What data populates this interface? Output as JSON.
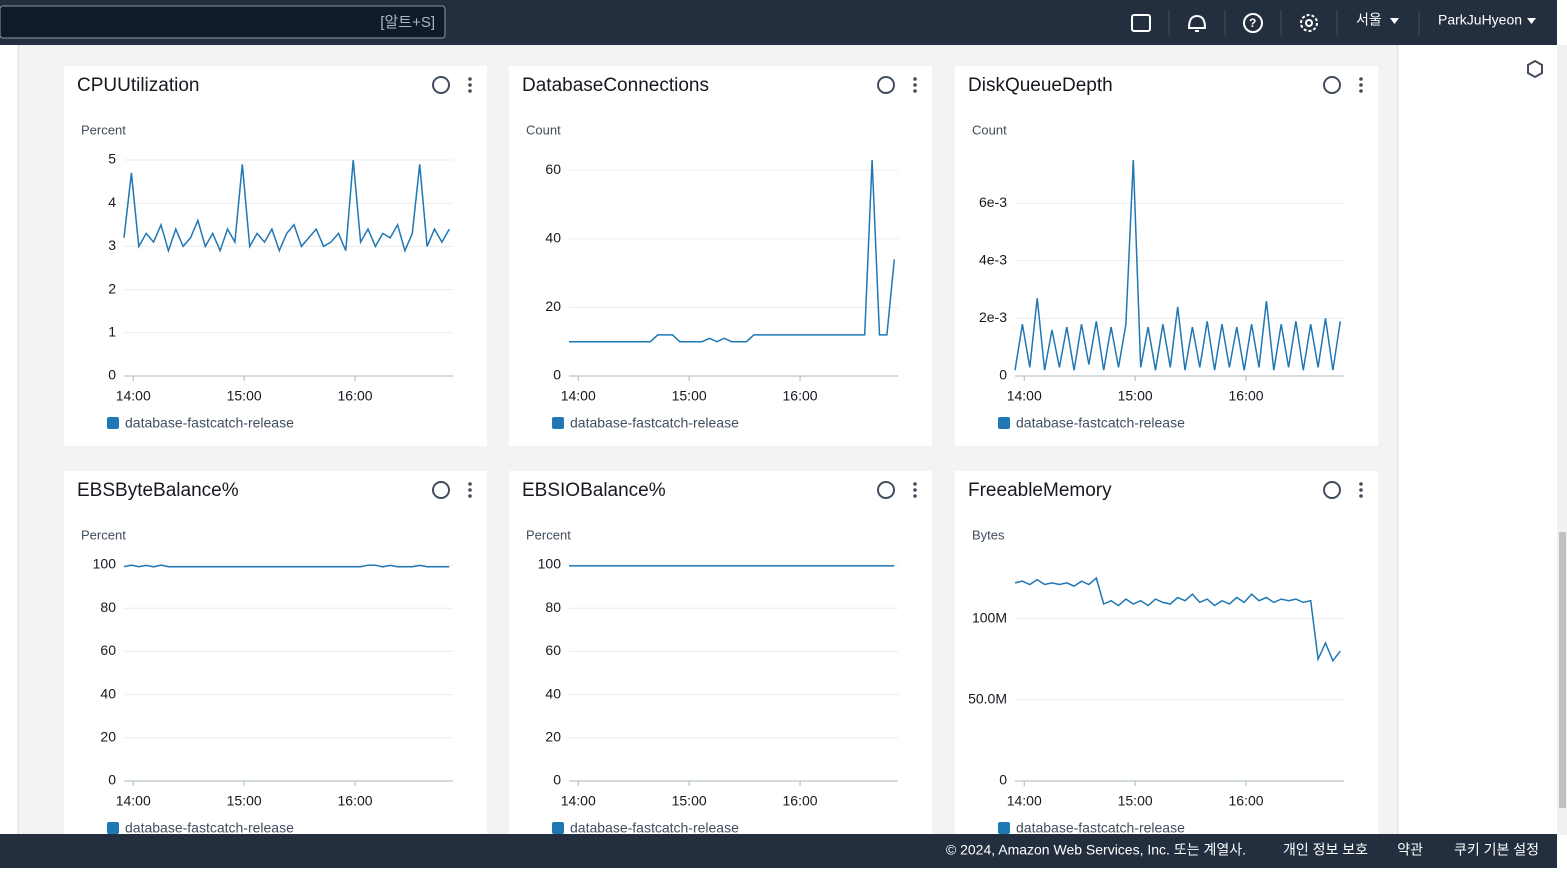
{
  "header": {
    "search_shortcut": "[알트+S]",
    "region": "서울",
    "user": "ParkJuHyeon"
  },
  "footer": {
    "copyright": "© 2024, Amazon Web Services, Inc. 또는 계열사.",
    "links": [
      "개인 정보 보호",
      "약관",
      "쿠키 기본 설정"
    ]
  },
  "chart_data": [
    {
      "type": "line",
      "title": "CPUUtilization",
      "y_label": "Percent",
      "x": [
        "13:55",
        "13:59",
        "14:03",
        "14:07",
        "14:11",
        "14:15",
        "14:19",
        "14:23",
        "14:27",
        "14:31",
        "14:35",
        "14:39",
        "14:43",
        "14:47",
        "14:51",
        "14:55",
        "14:59",
        "15:03",
        "15:07",
        "15:11",
        "15:15",
        "15:19",
        "15:23",
        "15:27",
        "15:31",
        "15:35",
        "15:39",
        "15:43",
        "15:47",
        "15:51",
        "15:55",
        "15:59",
        "16:03",
        "16:07",
        "16:11",
        "16:15",
        "16:19",
        "16:23",
        "16:27",
        "16:31",
        "16:35",
        "16:39",
        "16:43",
        "16:47",
        "16:51"
      ],
      "xlim": [
        "13:55",
        "16:53"
      ],
      "xticks": [
        "14:00",
        "15:00",
        "16:00"
      ],
      "ylim": [
        0,
        5
      ],
      "yticks": [
        0,
        1,
        2,
        3,
        4,
        5
      ],
      "grid": true,
      "series": [
        {
          "name": "database-fastcatch-release",
          "color": "#1f77b4",
          "values": [
            3.2,
            4.7,
            3.0,
            3.3,
            3.1,
            3.5,
            2.9,
            3.4,
            3.0,
            3.2,
            3.6,
            3.0,
            3.3,
            2.9,
            3.4,
            3.1,
            4.9,
            3.0,
            3.3,
            3.1,
            3.4,
            2.9,
            3.3,
            3.5,
            3.0,
            3.2,
            3.4,
            3.0,
            3.1,
            3.3,
            2.9,
            5.0,
            3.1,
            3.4,
            3.0,
            3.3,
            3.2,
            3.5,
            2.9,
            3.3,
            4.9,
            3.0,
            3.4,
            3.1,
            3.4
          ]
        }
      ]
    },
    {
      "type": "line",
      "title": "DatabaseConnections",
      "y_label": "Count",
      "x": [
        "13:55",
        "13:59",
        "14:03",
        "14:07",
        "14:11",
        "14:15",
        "14:19",
        "14:23",
        "14:27",
        "14:31",
        "14:35",
        "14:39",
        "14:43",
        "14:47",
        "14:51",
        "14:55",
        "14:59",
        "15:03",
        "15:07",
        "15:11",
        "15:15",
        "15:19",
        "15:23",
        "15:27",
        "15:31",
        "15:35",
        "15:39",
        "15:43",
        "15:47",
        "15:51",
        "15:55",
        "15:59",
        "16:03",
        "16:07",
        "16:11",
        "16:15",
        "16:19",
        "16:23",
        "16:27",
        "16:31",
        "16:35",
        "16:39",
        "16:43",
        "16:47",
        "16:51"
      ],
      "xlim": [
        "13:55",
        "16:53"
      ],
      "xticks": [
        "14:00",
        "15:00",
        "16:00"
      ],
      "ylim": [
        0,
        63
      ],
      "yticks": [
        0,
        20,
        40,
        60
      ],
      "grid": true,
      "series": [
        {
          "name": "database-fastcatch-release",
          "color": "#1f77b4",
          "values": [
            10,
            10,
            10,
            10,
            10,
            10,
            10,
            10,
            10,
            10,
            10,
            10,
            12,
            12,
            12,
            10,
            10,
            10,
            10,
            11,
            10,
            11,
            10,
            10,
            10,
            12,
            12,
            12,
            12,
            12,
            12,
            12,
            12,
            12,
            12,
            12,
            12,
            12,
            12,
            12,
            12,
            63,
            12,
            12,
            34
          ]
        }
      ]
    },
    {
      "type": "line",
      "title": "DiskQueueDepth",
      "y_label": "Count",
      "x": [
        "13:55",
        "13:59",
        "14:03",
        "14:07",
        "14:11",
        "14:15",
        "14:19",
        "14:23",
        "14:27",
        "14:31",
        "14:35",
        "14:39",
        "14:43",
        "14:47",
        "14:51",
        "14:55",
        "14:59",
        "15:03",
        "15:07",
        "15:11",
        "15:15",
        "15:19",
        "15:23",
        "15:27",
        "15:31",
        "15:35",
        "15:39",
        "15:43",
        "15:47",
        "15:51",
        "15:55",
        "15:59",
        "16:03",
        "16:07",
        "16:11",
        "16:15",
        "16:19",
        "16:23",
        "16:27",
        "16:31",
        "16:35",
        "16:39",
        "16:43",
        "16:47",
        "16:51"
      ],
      "xlim": [
        "13:55",
        "16:53"
      ],
      "xticks": [
        "14:00",
        "15:00",
        "16:00"
      ],
      "ylim": [
        0,
        0.0075
      ],
      "yticks": [
        0,
        {
          "value": 0.002,
          "label": "2e-3"
        },
        {
          "value": 0.004,
          "label": "4e-3"
        },
        {
          "value": 0.006,
          "label": "6e-3"
        }
      ],
      "grid": true,
      "series": [
        {
          "name": "database-fastcatch-release",
          "color": "#1f77b4",
          "values": [
            0.0002,
            0.0018,
            0.0003,
            0.0027,
            0.0002,
            0.0016,
            0.0003,
            0.0017,
            0.0002,
            0.0018,
            0.0004,
            0.0019,
            0.0002,
            0.0017,
            0.0003,
            0.0018,
            0.0075,
            0.0003,
            0.0017,
            0.0002,
            0.0018,
            0.0003,
            0.0024,
            0.0002,
            0.0017,
            0.0003,
            0.0019,
            0.0002,
            0.0018,
            0.0003,
            0.0017,
            0.0002,
            0.0018,
            0.0003,
            0.0026,
            0.0002,
            0.0018,
            0.0003,
            0.0019,
            0.0002,
            0.0018,
            0.0003,
            0.002,
            0.0002,
            0.0019
          ]
        }
      ]
    },
    {
      "type": "line",
      "title": "EBSByteBalance%",
      "y_label": "Percent",
      "x": [
        "13:55",
        "13:59",
        "14:03",
        "14:07",
        "14:11",
        "14:15",
        "14:19",
        "14:23",
        "14:27",
        "14:31",
        "14:35",
        "14:39",
        "14:43",
        "14:47",
        "14:51",
        "14:55",
        "14:59",
        "15:03",
        "15:07",
        "15:11",
        "15:15",
        "15:19",
        "15:23",
        "15:27",
        "15:31",
        "15:35",
        "15:39",
        "15:43",
        "15:47",
        "15:51",
        "15:55",
        "15:59",
        "16:03",
        "16:07",
        "16:11",
        "16:15",
        "16:19",
        "16:23",
        "16:27",
        "16:31",
        "16:35",
        "16:39",
        "16:43",
        "16:47",
        "16:51"
      ],
      "xlim": [
        "13:55",
        "16:53"
      ],
      "xticks": [
        "14:00",
        "15:00",
        "16:00"
      ],
      "ylim": [
        0,
        100
      ],
      "yticks": [
        0,
        20,
        40,
        60,
        80,
        100
      ],
      "grid": true,
      "series": [
        {
          "name": "database-fastcatch-release",
          "color": "#1f77b4",
          "values": [
            99.2,
            99.9,
            99.2,
            99.8,
            99.1,
            99.9,
            99.2,
            99.2,
            99.2,
            99.2,
            99.2,
            99.2,
            99.2,
            99.2,
            99.2,
            99.2,
            99.2,
            99.2,
            99.2,
            99.2,
            99.2,
            99.2,
            99.2,
            99.2,
            99.2,
            99.2,
            99.2,
            99.2,
            99.2,
            99.2,
            99.2,
            99.2,
            99.2,
            99.9,
            99.9,
            99.1,
            99.8,
            99.2,
            99.2,
            99.2,
            99.8,
            99.2,
            99.2,
            99.2,
            99.2
          ]
        }
      ]
    },
    {
      "type": "line",
      "title": "EBSIOBalance%",
      "y_label": "Percent",
      "x": [
        "13:55",
        "13:59",
        "14:03",
        "14:07",
        "14:11",
        "14:15",
        "14:19",
        "14:23",
        "14:27",
        "14:31",
        "14:35",
        "14:39",
        "14:43",
        "14:47",
        "14:51",
        "14:55",
        "14:59",
        "15:03",
        "15:07",
        "15:11",
        "15:15",
        "15:19",
        "15:23",
        "15:27",
        "15:31",
        "15:35",
        "15:39",
        "15:43",
        "15:47",
        "15:51",
        "15:55",
        "15:59",
        "16:03",
        "16:07",
        "16:11",
        "16:15",
        "16:19",
        "16:23",
        "16:27",
        "16:31",
        "16:35",
        "16:39",
        "16:43",
        "16:47",
        "16:51"
      ],
      "xlim": [
        "13:55",
        "16:53"
      ],
      "xticks": [
        "14:00",
        "15:00",
        "16:00"
      ],
      "ylim": [
        0,
        100
      ],
      "yticks": [
        0,
        20,
        40,
        60,
        80,
        100
      ],
      "grid": true,
      "series": [
        {
          "name": "database-fastcatch-release",
          "color": "#1f77b4",
          "values": [
            99.6,
            99.6,
            99.6,
            99.6,
            99.6,
            99.6,
            99.6,
            99.6,
            99.6,
            99.6,
            99.6,
            99.6,
            99.6,
            99.6,
            99.6,
            99.6,
            99.6,
            99.6,
            99.6,
            99.6,
            99.6,
            99.6,
            99.6,
            99.6,
            99.6,
            99.6,
            99.6,
            99.6,
            99.6,
            99.6,
            99.6,
            99.6,
            99.6,
            99.6,
            99.6,
            99.6,
            99.6,
            99.6,
            99.6,
            99.6,
            99.6,
            99.6,
            99.6,
            99.6,
            99.6
          ]
        }
      ]
    },
    {
      "type": "line",
      "title": "FreeableMemory",
      "y_label": "Bytes",
      "x": [
        "13:55",
        "13:59",
        "14:03",
        "14:07",
        "14:11",
        "14:15",
        "14:19",
        "14:23",
        "14:27",
        "14:31",
        "14:35",
        "14:39",
        "14:43",
        "14:47",
        "14:51",
        "14:55",
        "14:59",
        "15:03",
        "15:07",
        "15:11",
        "15:15",
        "15:19",
        "15:23",
        "15:27",
        "15:31",
        "15:35",
        "15:39",
        "15:43",
        "15:47",
        "15:51",
        "15:55",
        "15:59",
        "16:03",
        "16:07",
        "16:11",
        "16:15",
        "16:19",
        "16:23",
        "16:27",
        "16:31",
        "16:35",
        "16:39",
        "16:43",
        "16:47",
        "16:51"
      ],
      "xlim": [
        "13:55",
        "16:53"
      ],
      "xticks": [
        "14:00",
        "15:00",
        "16:00"
      ],
      "ylim": [
        0,
        133000000
      ],
      "yticks": [
        0,
        {
          "value": 50000000,
          "label": "50.0M"
        },
        {
          "value": 100000000,
          "label": "100M"
        }
      ],
      "grid": true,
      "series": [
        {
          "name": "database-fastcatch-release",
          "color": "#1f77b4",
          "values": [
            122000000,
            123000000,
            121000000,
            124000000,
            121000000,
            122000000,
            121000000,
            122000000,
            120000000,
            123000000,
            121000000,
            125000000,
            109000000,
            111000000,
            108000000,
            112000000,
            109000000,
            111000000,
            108000000,
            112000000,
            110000000,
            109000000,
            113000000,
            111000000,
            115000000,
            110000000,
            112000000,
            108000000,
            111000000,
            109000000,
            113000000,
            110000000,
            115000000,
            111000000,
            113000000,
            110000000,
            112000000,
            111000000,
            112000000,
            110000000,
            111000000,
            75000000,
            85000000,
            74000000,
            80000000
          ]
        }
      ]
    }
  ]
}
